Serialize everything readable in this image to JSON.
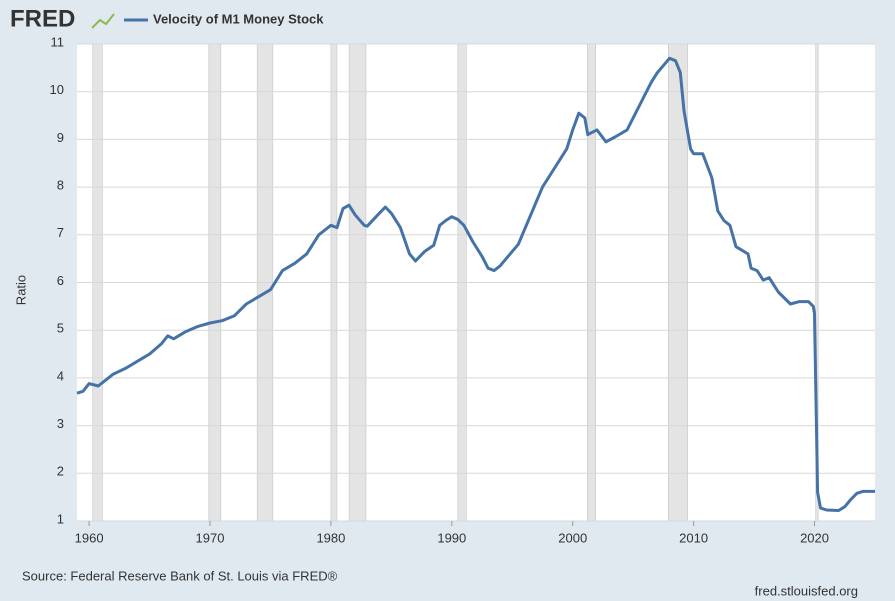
{
  "brand": "FRED",
  "chart_data": {
    "type": "line",
    "legend": "Velocity of M1 Money Stock",
    "y_label": "Ratio",
    "source": "Source: Federal Reserve Bank of St. Louis via FRED®",
    "url": "fred.stlouisfed.org",
    "color": "#4572a7",
    "grid": true,
    "xlim": [
      1959,
      2025
    ],
    "ylim": [
      1,
      11
    ],
    "xticks": [
      1960,
      1970,
      1980,
      1990,
      2000,
      2010,
      2020
    ],
    "yticks": [
      1,
      2,
      3,
      4,
      5,
      6,
      7,
      8,
      9,
      10,
      11
    ],
    "recessions": [
      [
        1960.3,
        1961.1
      ],
      [
        1969.9,
        1970.9
      ],
      [
        1973.9,
        1975.2
      ],
      [
        1980.0,
        1980.5
      ],
      [
        1981.5,
        1982.9
      ],
      [
        1990.5,
        1991.2
      ],
      [
        2001.2,
        2001.9
      ],
      [
        2007.9,
        2009.5
      ],
      [
        2020.1,
        2020.3
      ]
    ],
    "x": [
      1959,
      1959.5,
      1960,
      1960.75,
      1961.5,
      1962,
      1963,
      1964,
      1965,
      1966,
      1966.5,
      1967,
      1968,
      1969,
      1970,
      1971,
      1972,
      1973,
      1974,
      1975,
      1976,
      1977,
      1978,
      1979,
      1980,
      1980.5,
      1981,
      1981.5,
      1982,
      1982.75,
      1983,
      1984,
      1984.5,
      1985,
      1985.75,
      1986.5,
      1987,
      1987.75,
      1988.5,
      1989,
      1989.5,
      1990,
      1990.5,
      1991,
      1991.75,
      1992.5,
      1993,
      1993.5,
      1994,
      1994.5,
      1995.5,
      1996.5,
      1997.5,
      1998.5,
      1999.5,
      2000,
      2000.5,
      2001,
      2001.25,
      2002,
      2002.75,
      2003.5,
      2004.5,
      2005.5,
      2006.5,
      2007,
      2008,
      2008.5,
      2008.9,
      2009.2,
      2009.75,
      2010,
      2010.75,
      2011.5,
      2012,
      2012.5,
      2013,
      2013.5,
      2014.5,
      2014.75,
      2015.25,
      2015.75,
      2016.25,
      2017,
      2018,
      2018.75,
      2019.5,
      2019.9,
      2020,
      2020.25,
      2020.5,
      2021,
      2022,
      2022.5,
      2023,
      2023.5,
      2024,
      2025
    ],
    "values": [
      3.68,
      3.72,
      3.88,
      3.83,
      3.98,
      4.08,
      4.2,
      4.35,
      4.5,
      4.72,
      4.88,
      4.82,
      4.97,
      5.08,
      5.15,
      5.2,
      5.3,
      5.55,
      5.7,
      5.85,
      6.25,
      6.4,
      6.6,
      7.0,
      7.2,
      7.15,
      7.55,
      7.62,
      7.42,
      7.2,
      7.18,
      7.45,
      7.58,
      7.45,
      7.15,
      6.6,
      6.45,
      6.65,
      6.78,
      7.2,
      7.3,
      7.38,
      7.32,
      7.2,
      6.85,
      6.55,
      6.3,
      6.25,
      6.35,
      6.5,
      6.8,
      7.4,
      8.0,
      8.4,
      8.8,
      9.2,
      9.55,
      9.45,
      9.1,
      9.2,
      8.95,
      9.05,
      9.2,
      9.7,
      10.2,
      10.4,
      10.7,
      10.65,
      10.4,
      9.6,
      8.8,
      8.7,
      8.7,
      8.2,
      7.5,
      7.3,
      7.2,
      6.75,
      6.6,
      6.3,
      6.25,
      6.05,
      6.1,
      5.8,
      5.55,
      5.6,
      5.6,
      5.5,
      5.35,
      1.6,
      1.27,
      1.23,
      1.22,
      1.3,
      1.45,
      1.58,
      1.62,
      1.62
    ]
  }
}
